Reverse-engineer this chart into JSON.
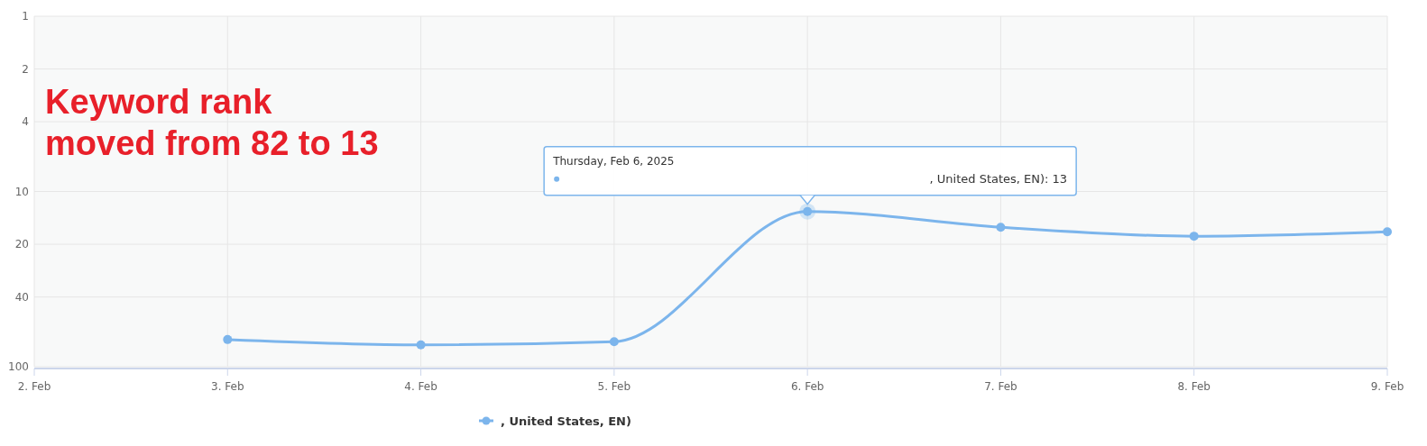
{
  "chart_data": {
    "type": "line",
    "x": [
      "2025-02-03",
      "2025-02-04",
      "2025-02-05",
      "2025-02-06",
      "2025-02-07",
      "2025-02-08",
      "2025-02-09"
    ],
    "series": [
      {
        "name": ", United States, EN)",
        "color": "#7cb5ec",
        "values": [
          70,
          75,
          72,
          13,
          16,
          18,
          17
        ]
      }
    ],
    "xlim": [
      "2025-02-02",
      "2025-02-09"
    ],
    "xticks": [
      {
        "value": "2025-02-02",
        "label": "2. Feb"
      },
      {
        "value": "2025-02-03",
        "label": "3. Feb"
      },
      {
        "value": "2025-02-04",
        "label": "4. Feb"
      },
      {
        "value": "2025-02-05",
        "label": "5. Feb"
      },
      {
        "value": "2025-02-06",
        "label": "6. Feb"
      },
      {
        "value": "2025-02-07",
        "label": "7. Feb"
      },
      {
        "value": "2025-02-08",
        "label": "8. Feb"
      },
      {
        "value": "2025-02-09",
        "label": "9. Feb"
      }
    ],
    "ylim": [
      100,
      1
    ],
    "yticks": [
      1,
      2,
      4,
      10,
      20,
      40,
      100
    ],
    "log": "y",
    "grid": true,
    "marker": "circle",
    "line_style": "solid",
    "legend": "bottom",
    "annotations": [
      "Keyword rank\nmoved from 82 to 13",
      "Thursday, Feb 6, 2025",
      ", United States, EN): 13"
    ]
  }
}
